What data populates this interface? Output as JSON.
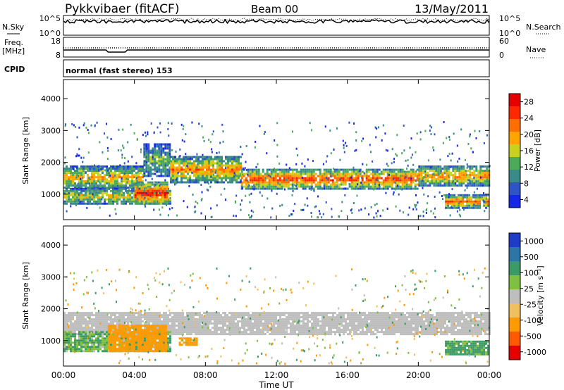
{
  "header": {
    "station": "Pykkvibaer (fitACF)",
    "beam": "Beam 00",
    "date": "13/May/2011"
  },
  "summary_panels": {
    "nsky_label": "N.Sky",
    "nsky_ticks": [
      "10^5",
      "10^0"
    ],
    "nsearch_label": "N.Search",
    "nsearch_ticks": [
      "10^5",
      "10^0"
    ],
    "freq_label": "Freq.",
    "freq_unit": "[MHz]",
    "freq_ticks": [
      "18",
      "8"
    ],
    "nave_label": "Nave",
    "nave_ticks": [
      "60",
      "0"
    ],
    "cpid_label": "CPID",
    "cpid_value": "normal (fast stereo) 153"
  },
  "colors": {
    "power_scale": [
      "#1428e6",
      "#2f54c8",
      "#3b8a8a",
      "#4caa5a",
      "#c8d21e",
      "#ffa400",
      "#ff6e00",
      "#ff2800",
      "#e60000"
    ],
    "velocity_scale": [
      "#1e3cc8",
      "#2f74a6",
      "#3c9a64",
      "#7fc040",
      "#bebebe",
      "#f0c060",
      "#ff9a00",
      "#ff5a00",
      "#e60000"
    ],
    "ground_scatter": "#bebebe"
  },
  "chart_data": [
    {
      "type": "heatmap",
      "panel": "power",
      "ylabel": "Slant Range [km]",
      "yticks": [
        "4000",
        "3000",
        "2000",
        "1000"
      ],
      "ylim": [
        200,
        4600
      ],
      "xlim_hours": [
        0,
        24
      ],
      "colorbar": {
        "title": "Power [dB]",
        "ticks": [
          "28",
          "24",
          "20",
          "16",
          "12",
          "8",
          "4"
        ],
        "range": [
          0,
          32
        ]
      },
      "bands": [
        {
          "t": [
            0,
            4.5
          ],
          "range_km": [
            1200,
            1900
          ],
          "level": 18
        },
        {
          "t": [
            4.5,
            6
          ],
          "range_km": [
            1600,
            2600
          ],
          "level": 12
        },
        {
          "t": [
            6,
            10
          ],
          "range_km": [
            1400,
            2200
          ],
          "level": 20
        },
        {
          "t": [
            10,
            20
          ],
          "range_km": [
            1200,
            1800
          ],
          "level": 24
        },
        {
          "t": [
            20,
            24
          ],
          "range_km": [
            1300,
            1900
          ],
          "level": 20
        },
        {
          "t": [
            0,
            6
          ],
          "range_km": [
            700,
            1200
          ],
          "level": 16
        },
        {
          "t": [
            4,
            5.8
          ],
          "range_km": [
            700,
            1400
          ],
          "level": 26
        },
        {
          "t": [
            21.5,
            24
          ],
          "range_km": [
            600,
            1000
          ],
          "level": 22
        }
      ]
    },
    {
      "type": "heatmap",
      "panel": "velocity",
      "ylabel": "Slant Range [km]",
      "yticks": [
        "4000",
        "3000",
        "2000",
        "1000"
      ],
      "ylim": [
        200,
        4600
      ],
      "xlim_hours": [
        0,
        24
      ],
      "xticks": [
        "00:00",
        "04:00",
        "08:00",
        "12:00",
        "16:00",
        "20:00",
        "00:00"
      ],
      "xlabel": "Time UT",
      "colorbar": {
        "title": "Velocity [m s⁻¹]",
        "ticks": [
          "1000",
          "500",
          "100",
          "25",
          "-25",
          "-100",
          "-500",
          "-1000"
        ]
      },
      "bands": [
        {
          "t": [
            0,
            24
          ],
          "range_km": [
            1200,
            1900
          ],
          "velocity": 0
        },
        {
          "t": [
            0,
            6
          ],
          "range_km": [
            700,
            1300
          ],
          "velocity": 100
        },
        {
          "t": [
            2.5,
            5.8
          ],
          "range_km": [
            700,
            1500
          ],
          "velocity": -300
        },
        {
          "t": [
            6.5,
            7.5
          ],
          "range_km": [
            850,
            1100
          ],
          "velocity": -300
        },
        {
          "t": [
            21.5,
            24
          ],
          "range_km": [
            600,
            1000
          ],
          "velocity": 150
        }
      ]
    }
  ]
}
